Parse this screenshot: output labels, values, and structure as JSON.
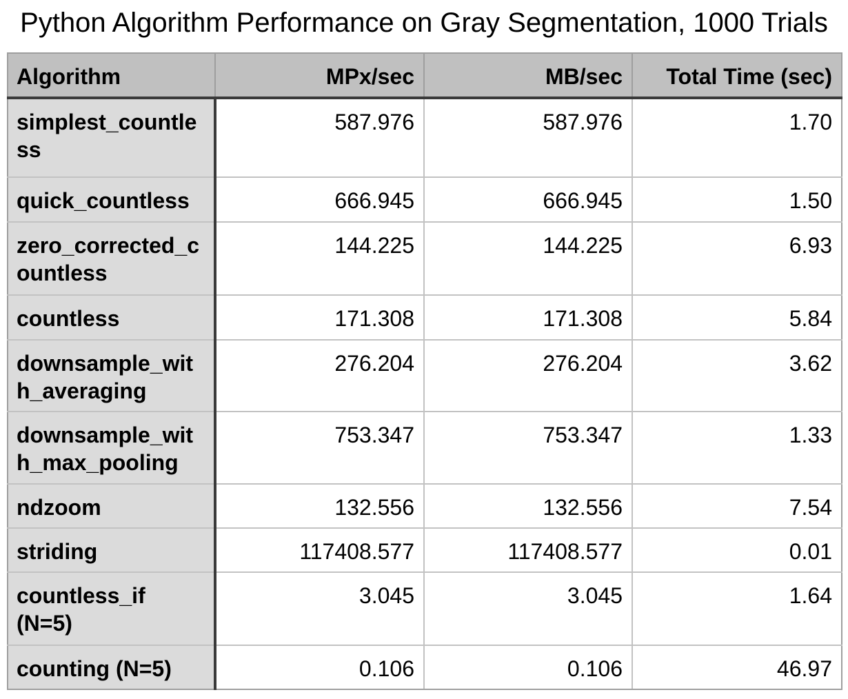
{
  "title": "Python Algorithm Performance on Gray Segmentation, 1000 Trials",
  "table": {
    "headers": {
      "algorithm": "Algorithm",
      "mpx": "MPx/sec",
      "mb": "MB/sec",
      "total": "Total Time (sec)"
    },
    "rows": [
      {
        "algorithm": "simplest_countless",
        "mpx": "587.976",
        "mb": "587.976",
        "total": "1.70"
      },
      {
        "algorithm": "quick_countless",
        "mpx": "666.945",
        "mb": "666.945",
        "total": "1.50"
      },
      {
        "algorithm": "zero_corrected_countless",
        "mpx": "144.225",
        "mb": "144.225",
        "total": "6.93"
      },
      {
        "algorithm": "countless",
        "mpx": "171.308",
        "mb": "171.308",
        "total": "5.84"
      },
      {
        "algorithm": "downsample_with_averaging",
        "mpx": "276.204",
        "mb": "276.204",
        "total": "3.62"
      },
      {
        "algorithm": "downsample_with_max_pooling",
        "mpx": "753.347",
        "mb": "753.347",
        "total": "1.33"
      },
      {
        "algorithm": "ndzoom",
        "mpx": "132.556",
        "mb": "132.556",
        "total": "7.54"
      },
      {
        "algorithm": "striding",
        "mpx": "117408.577",
        "mb": "117408.577",
        "total": "0.01"
      },
      {
        "algorithm": "countless_if (N=5)",
        "mpx": "3.045",
        "mb": "3.045",
        "total": "1.64"
      },
      {
        "algorithm": "counting (N=5)",
        "mpx": "0.106",
        "mb": "0.106",
        "total": "46.97"
      }
    ]
  },
  "colors": {
    "header_bg": "#c0c0c0",
    "row_label_bg": "#dbdbdb",
    "dark_border": "#3a3a3a",
    "grid_line": "#c2c2c2",
    "outer_border": "#9e9e9e",
    "text": "#000000"
  },
  "chart_data": {
    "type": "table",
    "title": "Python Algorithm Performance on Gray Segmentation, 1000 Trials",
    "columns": [
      "Algorithm",
      "MPx/sec",
      "MB/sec",
      "Total Time (sec)"
    ],
    "rows": [
      [
        "simplest_countless",
        587.976,
        587.976,
        1.7
      ],
      [
        "quick_countless",
        666.945,
        666.945,
        1.5
      ],
      [
        "zero_corrected_countless",
        144.225,
        144.225,
        6.93
      ],
      [
        "countless",
        171.308,
        171.308,
        5.84
      ],
      [
        "downsample_with_averaging",
        276.204,
        276.204,
        3.62
      ],
      [
        "downsample_with_max_pooling",
        753.347,
        753.347,
        1.33
      ],
      [
        "ndzoom",
        132.556,
        132.556,
        7.54
      ],
      [
        "striding",
        117408.577,
        117408.577,
        0.01
      ],
      [
        "countless_if (N=5)",
        3.045,
        3.045,
        1.64
      ],
      [
        "counting (N=5)",
        0.106,
        0.106,
        46.97
      ]
    ]
  }
}
